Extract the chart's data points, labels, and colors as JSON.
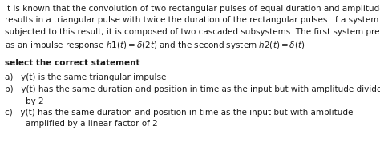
{
  "bg_color": "#ffffff",
  "text_color": "#1a1a1a",
  "body_lines": [
    "It is known that the convolution of two rectangular pulses of equal duration and amplitude 1",
    "results in a triangular pulse with twice the duration of the rectangular pulses. If a system is",
    "subjected to this result, it is composed of two cascaded subsystems. The first system presents",
    "as an impulse response $h1(t) = \\delta(2t)$ and the second system $h2(t) = \\delta(t)$"
  ],
  "bold_label": "select the correct statement",
  "options": [
    [
      "a)   y(t) is the same triangular impulse"
    ],
    [
      "b)   y(t) has the same duration and position in time as the input but with amplitude divided",
      "        by 2"
    ],
    [
      "c)   y(t) has the same duration and position in time as the input but with amplitude",
      "        amplified by a linear factor of 2"
    ]
  ],
  "font_size": 7.5,
  "font_family": "DejaVu Sans"
}
